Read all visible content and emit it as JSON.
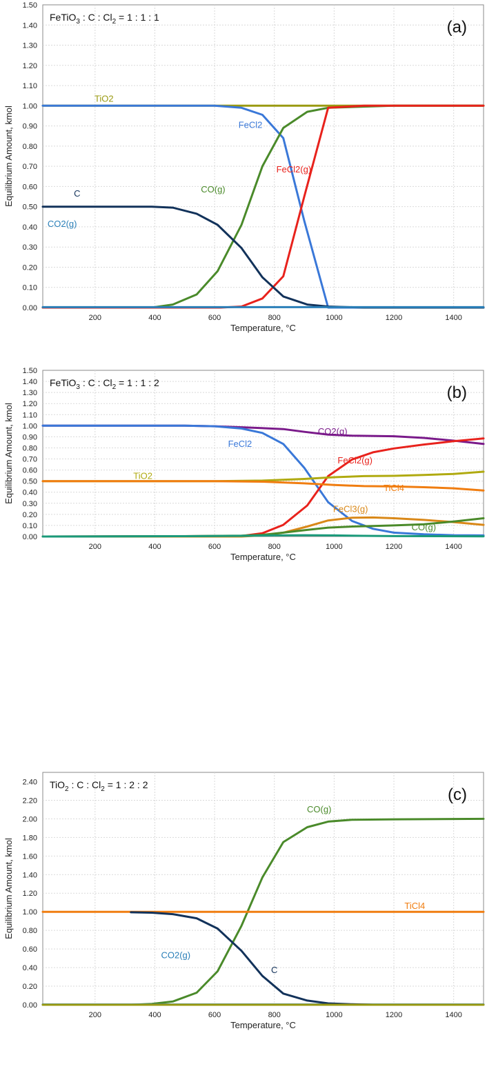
{
  "chart_data": [
    {
      "type": "line",
      "panel_label": "(a)",
      "ratio_text": {
        "formula": "FeTiO",
        "sub1": "3",
        "mid": " : C : Cl",
        "sub2": "2",
        "tail": " = 1 : 1 : 1"
      },
      "xlabel": "Temperature, °C",
      "ylabel": "Equilibrium Amount, kmol",
      "xlim": [
        25,
        1500
      ],
      "ylim": [
        0,
        1.5
      ],
      "xticks": [
        200,
        400,
        600,
        800,
        1000,
        1200,
        1400
      ],
      "yticks": [
        "0.00",
        "0.10",
        "0.20",
        "0.30",
        "0.40",
        "0.50",
        "0.60",
        "0.70",
        "0.80",
        "0.90",
        "1.00",
        "1.10",
        "1.20",
        "1.30",
        "1.40",
        "1.50"
      ],
      "grid": true,
      "series": [
        {
          "name": "TiO2",
          "color": "#9a9a10",
          "label_at": [
            230,
            1.02
          ],
          "x": [
            25,
            1500
          ],
          "y": [
            1.0,
            1.0
          ]
        },
        {
          "name": "FeCl2",
          "color": "#3a78d8",
          "label_at": [
            720,
            0.89
          ],
          "x": [
            25,
            600,
            690,
            760,
            830,
            900,
            980,
            1100,
            1500
          ],
          "y": [
            1.0,
            1.0,
            0.99,
            0.955,
            0.84,
            0.43,
            0.0,
            0.0,
            0.0
          ]
        },
        {
          "name": "CO(g)",
          "color": "#4a8a2a",
          "label_at": [
            595,
            0.57
          ],
          "x": [
            25,
            390,
            460,
            540,
            610,
            690,
            760,
            830,
            910,
            980,
            1200,
            1500
          ],
          "y": [
            0.0,
            0.0,
            0.015,
            0.065,
            0.18,
            0.41,
            0.7,
            0.89,
            0.97,
            0.99,
            1.0,
            1.0
          ]
        },
        {
          "name": "FeCl2(g)",
          "color": "#e8221c",
          "label_at": [
            865,
            0.67
          ],
          "x": [
            25,
            620,
            690,
            760,
            830,
            900,
            980,
            1100,
            1500
          ],
          "y": [
            0.0,
            0.0,
            0.005,
            0.045,
            0.155,
            0.55,
            0.99,
            1.0,
            1.0
          ]
        },
        {
          "name": "C",
          "color": "#12325a",
          "label_at": [
            140,
            0.55
          ],
          "x": [
            25,
            390,
            460,
            540,
            610,
            690,
            760,
            830,
            910,
            980,
            1100,
            1500
          ],
          "y": [
            0.5,
            0.5,
            0.495,
            0.465,
            0.41,
            0.295,
            0.15,
            0.055,
            0.015,
            0.005,
            0.0,
            0.0
          ]
        },
        {
          "name": "CO2(g)",
          "color": "#2a7fb8",
          "label_at": [
            90,
            0.4
          ],
          "x": [
            25,
            1500
          ],
          "y": [
            0.002,
            0.002
          ]
        }
      ]
    },
    {
      "type": "line",
      "panel_label": "(b)",
      "ratio_text": {
        "formula": "FeTiO",
        "sub1": "3",
        "mid": " : C : Cl",
        "sub2": "2",
        "tail": " = 1 : 1 : 2"
      },
      "xlabel": "Temperature, °C",
      "ylabel": "Equilibrium Amount, kmol",
      "xlim": [
        25,
        1500
      ],
      "ylim": [
        0,
        1.5
      ],
      "xticks": [
        200,
        400,
        600,
        800,
        1000,
        1200,
        1400
      ],
      "yticks": [
        "0.00",
        "0.10",
        "0.20",
        "0.30",
        "0.40",
        "0.50",
        "0.60",
        "0.70",
        "0.80",
        "0.90",
        "1.00",
        "1.10",
        "1.20",
        "1.30",
        "1.40",
        "1.50"
      ],
      "grid": true,
      "series": [
        {
          "name": "CO2(g)",
          "color": "#7a1a8a",
          "label_at": [
            995,
            0.92
          ],
          "x": [
            25,
            500,
            600,
            700,
            830,
            900,
            980,
            1060,
            1200,
            1300,
            1400,
            1500
          ],
          "y": [
            1.0,
            1.0,
            0.995,
            0.985,
            0.97,
            0.945,
            0.92,
            0.91,
            0.905,
            0.89,
            0.865,
            0.835
          ]
        },
        {
          "name": "FeCl2",
          "color": "#3a78d8",
          "label_at": [
            685,
            0.81
          ],
          "x": [
            25,
            500,
            600,
            690,
            760,
            830,
            900,
            980,
            1060,
            1130,
            1200,
            1300,
            1400,
            1500
          ],
          "y": [
            1.0,
            1.0,
            0.995,
            0.975,
            0.935,
            0.835,
            0.62,
            0.31,
            0.14,
            0.07,
            0.035,
            0.02,
            0.012,
            0.01
          ]
        },
        {
          "name": "FeCl2(g)",
          "color": "#e8221c",
          "label_at": [
            1070,
            0.66
          ],
          "x": [
            25,
            690,
            760,
            830,
            910,
            980,
            1060,
            1130,
            1200,
            1300,
            1400,
            1500
          ],
          "y": [
            0.0,
            0.005,
            0.03,
            0.105,
            0.28,
            0.545,
            0.695,
            0.76,
            0.795,
            0.83,
            0.86,
            0.885
          ]
        },
        {
          "name": "TiO2",
          "color": "#b0aa10",
          "label_at": [
            360,
            0.52
          ],
          "x": [
            25,
            600,
            760,
            900,
            1000,
            1100,
            1200,
            1300,
            1400,
            1500
          ],
          "y": [
            0.5,
            0.5,
            0.505,
            0.52,
            0.535,
            0.545,
            0.548,
            0.555,
            0.565,
            0.585
          ]
        },
        {
          "name": "TiCl4",
          "color": "#f07d10",
          "label_at": [
            1200,
            0.41
          ],
          "x": [
            25,
            600,
            760,
            900,
            1000,
            1100,
            1200,
            1300,
            1400,
            1500
          ],
          "y": [
            0.5,
            0.5,
            0.495,
            0.48,
            0.465,
            0.455,
            0.452,
            0.445,
            0.435,
            0.415
          ]
        },
        {
          "name": "FeCl3(g)",
          "color": "#d98818",
          "label_at": [
            1055,
            0.22
          ],
          "x": [
            25,
            690,
            760,
            830,
            910,
            980,
            1060,
            1130,
            1200,
            1300,
            1400,
            1500
          ],
          "y": [
            0.0,
            0.0,
            0.01,
            0.035,
            0.09,
            0.145,
            0.17,
            0.172,
            0.165,
            0.15,
            0.13,
            0.105
          ]
        },
        {
          "name": "CO(g)",
          "color": "#4a8a2a",
          "label_at": [
            1300,
            0.055
          ],
          "x": [
            25,
            500,
            690,
            760,
            830,
            910,
            980,
            1060,
            1130,
            1200,
            1300,
            1400,
            1500
          ],
          "y": [
            0.0,
            0.003,
            0.008,
            0.015,
            0.035,
            0.06,
            0.08,
            0.09,
            0.095,
            0.1,
            0.11,
            0.135,
            0.165
          ]
        },
        {
          "name": "",
          "color": "#1a9a7a",
          "x": [
            25,
            500,
            700,
            800,
            900,
            1000,
            1100,
            1200,
            1500
          ],
          "y": [
            0.0,
            0.003,
            0.006,
            0.01,
            0.012,
            0.01,
            0.006,
            0.004,
            0.002
          ]
        }
      ]
    },
    {
      "type": "line",
      "panel_label": "(c)",
      "ratio_text": {
        "formula": "TiO",
        "sub1": "2",
        "mid": " : C : Cl",
        "sub2": "2",
        "tail": " = 1 : 2 : 2"
      },
      "xlabel": "Temperature, °C",
      "ylabel": "Equilibrium Amount, kmol",
      "xlim": [
        25,
        1500
      ],
      "ylim": [
        0,
        2.5
      ],
      "xticks": [
        200,
        400,
        600,
        800,
        1000,
        1200,
        1400
      ],
      "yticks": [
        "0.00",
        "0.20",
        "0.40",
        "0.60",
        "0.80",
        "1.00",
        "1.20",
        "1.40",
        "1.60",
        "1.80",
        "2.00",
        "2.20",
        "2.40"
      ],
      "grid": true,
      "series": [
        {
          "name": "CO(g)",
          "color": "#4a8a2a",
          "label_at": [
            950,
            2.07
          ],
          "x": [
            25,
            320,
            390,
            460,
            540,
            610,
            690,
            760,
            830,
            910,
            980,
            1060,
            1200,
            1500
          ],
          "y": [
            0.0,
            0.0,
            0.01,
            0.035,
            0.13,
            0.36,
            0.85,
            1.37,
            1.75,
            1.91,
            1.97,
            1.99,
            1.995,
            2.0
          ]
        },
        {
          "name": "TiCl4",
          "color": "#f07d10",
          "label_at": [
            1270,
            1.03
          ],
          "x": [
            25,
            1500
          ],
          "y": [
            1.0,
            1.0
          ]
        },
        {
          "name": "CO2(g)",
          "color": "#2a7fb8",
          "label_at": [
            470,
            0.5
          ],
          "x": [
            25,
            1500
          ],
          "y": [
            0.003,
            0.003
          ]
        },
        {
          "name": "C",
          "color": "#12325a",
          "label_at": [
            800,
            0.34
          ],
          "x": [
            320,
            390,
            460,
            540,
            610,
            690,
            760,
            830,
            910,
            980,
            1060,
            1130
          ],
          "y": [
            0.995,
            0.99,
            0.975,
            0.93,
            0.82,
            0.58,
            0.31,
            0.12,
            0.045,
            0.015,
            0.005,
            0.0
          ]
        },
        {
          "name": "",
          "color": "#9a9a10",
          "x": [
            25,
            1500
          ],
          "y": [
            0.0,
            0.0
          ]
        }
      ]
    }
  ]
}
